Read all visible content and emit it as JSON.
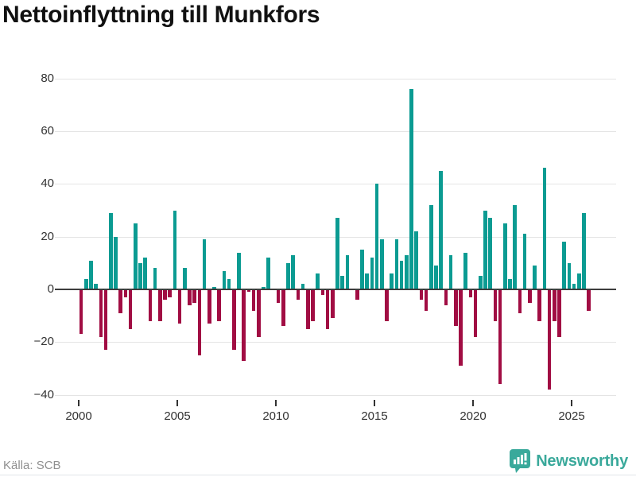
{
  "chart_data": {
    "type": "bar",
    "title": "Nettoinflyttning till Munkfors",
    "source": "Källa: SCB",
    "frequency": "quarterly",
    "start_period": "2000 Q1",
    "end_period": "2025 Q4",
    "x_tick_labels": [
      "2000",
      "2005",
      "2010",
      "2015",
      "2020",
      "2025"
    ],
    "y_tick_labels": [
      "80",
      "60",
      "40",
      "20",
      "0",
      "−20",
      "−40"
    ],
    "y_ticks": [
      80,
      60,
      40,
      20,
      0,
      -20,
      -40
    ],
    "ylim": [
      -45,
      85
    ],
    "grid": "horizontal",
    "positive_color": "#0b9b92",
    "negative_color": "#a10d43",
    "values": [
      -17,
      4,
      11,
      2,
      -18,
      -23,
      29,
      20,
      -9,
      -3,
      -15,
      25,
      10,
      12,
      -12,
      8,
      -12,
      -4,
      -3,
      30,
      -13,
      8,
      -6,
      -5,
      -25,
      19,
      -13,
      1,
      -12,
      7,
      4,
      -23,
      14,
      -27,
      -1,
      -8,
      -18,
      1,
      12,
      0,
      -5,
      -14,
      10,
      13,
      -4,
      2,
      -15,
      -12,
      6,
      -2,
      -15,
      -11,
      27,
      5,
      13,
      0,
      -4,
      15,
      6,
      12,
      40,
      19,
      -12,
      6,
      19,
      11,
      13,
      76,
      22,
      -4,
      -8,
      32,
      9,
      45,
      -6,
      13,
      -14,
      -29,
      14,
      -3,
      -18,
      5,
      30,
      27,
      -12,
      -36,
      25,
      4,
      32,
      -9,
      21,
      -5,
      9,
      -12,
      46,
      -38,
      -12,
      -18,
      18,
      10,
      2,
      6,
      29,
      -8
    ]
  },
  "footer": {
    "brand": "Newsworthy"
  }
}
